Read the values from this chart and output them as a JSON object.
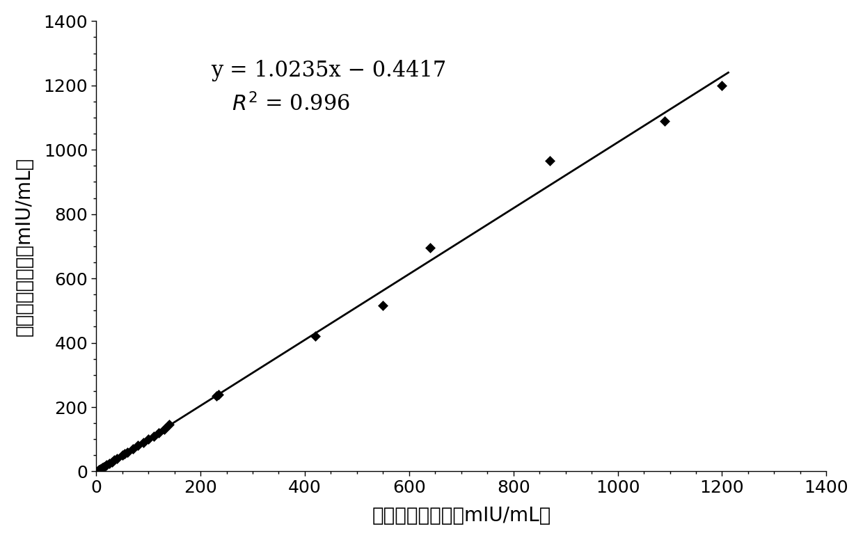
{
  "scatter_x": [
    2,
    5,
    8,
    10,
    12,
    15,
    18,
    20,
    25,
    30,
    35,
    40,
    50,
    55,
    60,
    70,
    80,
    90,
    100,
    110,
    120,
    130,
    140,
    230,
    235,
    420,
    550,
    640,
    870,
    1090,
    1200
  ],
  "scatter_y": [
    2,
    5,
    8,
    10,
    12,
    15,
    18,
    20,
    25,
    30,
    35,
    40,
    50,
    55,
    60,
    70,
    80,
    90,
    100,
    110,
    120,
    130,
    145,
    235,
    240,
    420,
    515,
    695,
    965,
    1090,
    1200
  ],
  "slope": 1.0235,
  "intercept": -0.4417,
  "r2": 0.996,
  "equation_line1": "y = 1.0235x",
  "equation_line1b": " − 0.4417",
  "r2_label": "R",
  "r2_rest": " = 0.996",
  "xlabel_cn": "常规法检测结果",
  "xlabel_en": "（mIU/mL）",
  "ylabel_cn": "改良法检测结果",
  "ylabel_en": "（mIU/mL）",
  "xlim": [
    0,
    1400
  ],
  "ylim": [
    0,
    1400
  ],
  "xticks": [
    0,
    200,
    400,
    600,
    800,
    1000,
    1200,
    1400
  ],
  "yticks": [
    0,
    200,
    400,
    600,
    800,
    1000,
    1200,
    1400
  ],
  "line_color": "#000000",
  "marker_color": "#000000",
  "marker_size": 8,
  "line_width": 2.0,
  "annotation_fontsize": 22,
  "axis_fontsize": 20,
  "tick_fontsize": 18,
  "background_color": "#ffffff",
  "line_x_start": 0,
  "line_x_end": 1212
}
